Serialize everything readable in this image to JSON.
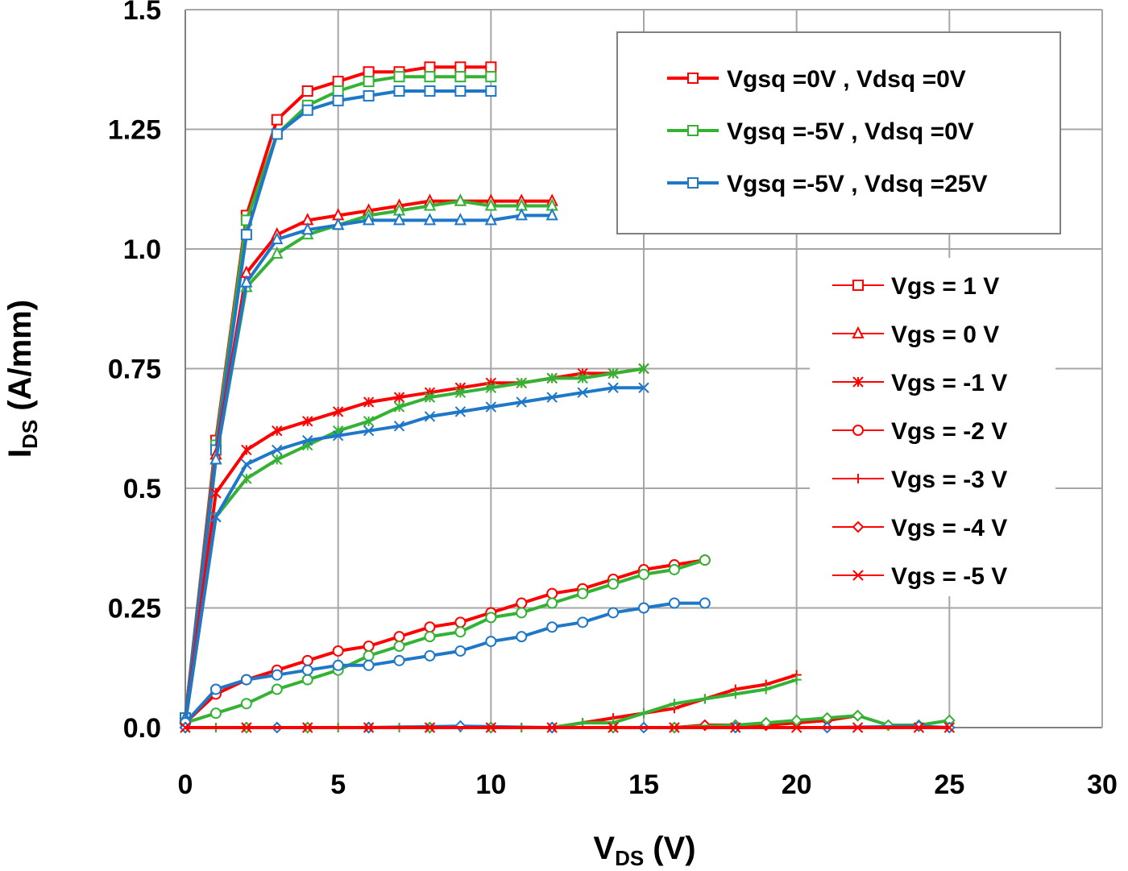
{
  "chart_data": {
    "type": "line",
    "title": "",
    "xlabel_main": "V",
    "xlabel_sub": "DS",
    "xlabel_unit": " (V)",
    "ylabel_main": "I",
    "ylabel_sub": "DS",
    "ylabel_unit": " (A/mm)",
    "xlim": [
      0,
      30
    ],
    "ylim": [
      0,
      1.5
    ],
    "xticks": [
      0,
      5,
      10,
      15,
      20,
      25,
      30
    ],
    "xtick_labels": [
      "0",
      "5",
      "10",
      "15",
      "20",
      "25",
      "30"
    ],
    "yticks": [
      0,
      0.25,
      0.5,
      0.75,
      1.0,
      1.25,
      1.5
    ],
    "ytick_labels": [
      "0.0",
      "0.25",
      "0.5",
      "0.75",
      "1.0",
      "1.25",
      "1.5"
    ],
    "grid": true,
    "colors": {
      "red": "#ff0000",
      "green": "#33b233",
      "blue": "#1f77c8",
      "cyan": "#00e0ff",
      "grid": "#a6a6a6"
    },
    "legend_conditions": [
      {
        "label": "Vgsq =0V , Vdsq =0V",
        "color": "red"
      },
      {
        "label": "Vgsq =-5V , Vdsq =0V",
        "color": "green"
      },
      {
        "label": "Vgsq =-5V , Vdsq =25V",
        "color": "blue"
      }
    ],
    "legend_markers": [
      {
        "label": "Vgs = 1 V",
        "marker": "square"
      },
      {
        "label": "Vgs = 0 V",
        "marker": "triangle"
      },
      {
        "label": "Vgs = -1 V",
        "marker": "star"
      },
      {
        "label": "Vgs = -2 V",
        "marker": "circle"
      },
      {
        "label": "Vgs = -3 V",
        "marker": "plus"
      },
      {
        "label": "Vgs = -4 V",
        "marker": "diamond"
      },
      {
        "label": "Vgs = -5 V",
        "marker": "x"
      }
    ],
    "series": [
      {
        "name": "Vgs = 1 V (0V,0V)",
        "color": "red",
        "marker": "square",
        "x": [
          0,
          1,
          2,
          3,
          4,
          5,
          6,
          7,
          8,
          9,
          10
        ],
        "y": [
          0.02,
          0.6,
          1.07,
          1.27,
          1.33,
          1.35,
          1.37,
          1.37,
          1.38,
          1.38,
          1.38
        ]
      },
      {
        "name": "Vgs = 1 V (-5V,0V)",
        "color": "green",
        "marker": "square",
        "x": [
          0,
          1,
          2,
          3,
          4,
          5,
          6,
          7,
          8,
          9,
          10
        ],
        "y": [
          0.02,
          0.59,
          1.06,
          1.24,
          1.3,
          1.33,
          1.35,
          1.36,
          1.36,
          1.36,
          1.36
        ]
      },
      {
        "name": "Vgs = 1 V (-5V,25V)",
        "color": "blue",
        "marker": "square",
        "x": [
          0,
          1,
          2,
          3,
          4,
          5,
          6,
          7,
          8,
          9,
          10
        ],
        "y": [
          0.02,
          0.58,
          1.03,
          1.24,
          1.29,
          1.31,
          1.32,
          1.33,
          1.33,
          1.33,
          1.33
        ]
      },
      {
        "name": "Vgs = 0 V (0V,0V)",
        "color": "red",
        "marker": "triangle",
        "x": [
          0,
          1,
          2,
          3,
          4,
          5,
          6,
          7,
          8,
          9,
          10,
          11,
          12
        ],
        "y": [
          0.02,
          0.57,
          0.95,
          1.03,
          1.06,
          1.07,
          1.08,
          1.09,
          1.1,
          1.1,
          1.1,
          1.1,
          1.1
        ]
      },
      {
        "name": "Vgs = 0 V (-5V,0V)",
        "color": "green",
        "marker": "triangle",
        "x": [
          0,
          1,
          2,
          3,
          4,
          5,
          6,
          7,
          8,
          9,
          10,
          11,
          12
        ],
        "y": [
          0.02,
          0.56,
          0.92,
          0.99,
          1.03,
          1.05,
          1.07,
          1.08,
          1.09,
          1.1,
          1.09,
          1.09,
          1.09
        ]
      },
      {
        "name": "Vgs = 0 V (-5V,25V)",
        "color": "blue",
        "marker": "triangle",
        "x": [
          0,
          1,
          2,
          3,
          4,
          5,
          6,
          7,
          8,
          9,
          10,
          11,
          12
        ],
        "y": [
          0.02,
          0.56,
          0.93,
          1.02,
          1.04,
          1.05,
          1.06,
          1.06,
          1.06,
          1.06,
          1.06,
          1.07,
          1.07
        ]
      },
      {
        "name": "Vgs = -1 V (0V,0V)",
        "color": "red",
        "marker": "star",
        "x": [
          0,
          1,
          2,
          3,
          4,
          5,
          6,
          7,
          8,
          9,
          10,
          11,
          12,
          13,
          14,
          15
        ],
        "y": [
          0.01,
          0.49,
          0.58,
          0.62,
          0.64,
          0.66,
          0.68,
          0.69,
          0.7,
          0.71,
          0.72,
          0.72,
          0.73,
          0.74,
          0.74,
          0.75
        ]
      },
      {
        "name": "Vgs = -1 V (-5V,0V)",
        "color": "green",
        "marker": "star",
        "x": [
          0,
          1,
          2,
          3,
          4,
          5,
          6,
          7,
          8,
          9,
          10,
          11,
          12,
          13,
          14,
          15
        ],
        "y": [
          0.01,
          0.44,
          0.52,
          0.56,
          0.59,
          0.62,
          0.64,
          0.67,
          0.69,
          0.7,
          0.71,
          0.72,
          0.73,
          0.73,
          0.74,
          0.75
        ]
      },
      {
        "name": "Vgs = -5 V (-5V,25V)",
        "color": "blue",
        "marker": "x",
        "x": [
          0,
          1,
          2,
          3,
          4,
          5,
          6,
          7,
          8,
          9,
          10,
          11,
          12,
          13,
          14,
          15
        ],
        "y": [
          0.01,
          0.44,
          0.55,
          0.58,
          0.6,
          0.61,
          0.62,
          0.63,
          0.65,
          0.66,
          0.67,
          0.68,
          0.69,
          0.7,
          0.71,
          0.71
        ]
      },
      {
        "name": "Vgs = -2 V (0V,0V)",
        "color": "red",
        "marker": "circle",
        "x": [
          0,
          1,
          2,
          3,
          4,
          5,
          6,
          7,
          8,
          9,
          10,
          11,
          12,
          13,
          14,
          15,
          16,
          17
        ],
        "y": [
          0.01,
          0.07,
          0.1,
          0.12,
          0.14,
          0.16,
          0.17,
          0.19,
          0.21,
          0.22,
          0.24,
          0.26,
          0.28,
          0.29,
          0.31,
          0.33,
          0.34,
          0.35
        ]
      },
      {
        "name": "Vgs = -2 V (-5V,0V)",
        "color": "green",
        "marker": "circle",
        "x": [
          0,
          1,
          2,
          3,
          4,
          5,
          6,
          7,
          8,
          9,
          10,
          11,
          12,
          13,
          14,
          15,
          16,
          17
        ],
        "y": [
          0.01,
          0.03,
          0.05,
          0.08,
          0.1,
          0.12,
          0.15,
          0.17,
          0.19,
          0.2,
          0.23,
          0.24,
          0.26,
          0.28,
          0.3,
          0.32,
          0.33,
          0.35
        ]
      },
      {
        "name": "Vgs = -2 V (-5V,25V)",
        "color": "blue",
        "marker": "circle",
        "x": [
          0,
          1,
          2,
          3,
          4,
          5,
          6,
          7,
          8,
          9,
          10,
          11,
          12,
          13,
          14,
          15,
          16,
          17
        ],
        "y": [
          0.01,
          0.08,
          0.1,
          0.11,
          0.12,
          0.13,
          0.13,
          0.14,
          0.15,
          0.16,
          0.18,
          0.19,
          0.21,
          0.22,
          0.24,
          0.25,
          0.26,
          0.26
        ]
      },
      {
        "name": "Vgs = -3 V (0V,0V)",
        "color": "red",
        "marker": "plus",
        "x": [
          0,
          1,
          2,
          3,
          4,
          5,
          6,
          7,
          8,
          9,
          10,
          11,
          12,
          13,
          14,
          15,
          16,
          17,
          18,
          19,
          20
        ],
        "y": [
          0,
          0,
          0,
          0,
          0,
          0,
          0,
          0,
          0,
          0,
          0,
          0,
          0,
          0.01,
          0.02,
          0.03,
          0.04,
          0.06,
          0.08,
          0.09,
          0.11
        ]
      },
      {
        "name": "Vgs = -3 V (-5V,0V)",
        "color": "green",
        "marker": "plus",
        "x": [
          0,
          1,
          2,
          3,
          4,
          5,
          6,
          7,
          8,
          9,
          10,
          11,
          12,
          13,
          14,
          15,
          16,
          17,
          18,
          19,
          20
        ],
        "y": [
          0,
          0,
          0,
          0,
          0,
          0,
          0,
          0,
          0,
          0,
          0,
          0,
          0,
          0.01,
          0.01,
          0.03,
          0.05,
          0.06,
          0.07,
          0.08,
          0.1
        ]
      },
      {
        "name": "Vgs = -4 V (0V,0V)",
        "color": "red",
        "marker": "diamond",
        "x": [
          0,
          2,
          4,
          6,
          8,
          10,
          12,
          14,
          16,
          17,
          18,
          19,
          20,
          21,
          22
        ],
        "y": [
          0,
          0,
          0,
          0,
          0,
          0,
          0,
          0,
          0,
          0.005,
          0.005,
          0.005,
          0.01,
          0.015,
          0.025
        ]
      },
      {
        "name": "Vgs = -4 V (-5V,0V)",
        "color": "green",
        "marker": "diamond",
        "x": [
          0,
          2,
          4,
          6,
          8,
          10,
          12,
          14,
          16,
          18,
          19,
          20,
          21,
          22,
          23,
          24,
          25
        ],
        "y": [
          0,
          0,
          0,
          0,
          0,
          0,
          0,
          0,
          0,
          0.005,
          0.01,
          0.015,
          0.02,
          0.025,
          0.005,
          0.005,
          0.015
        ]
      },
      {
        "name": "Vgs = -4 V (-5V,25V)",
        "color": "blue",
        "marker": "diamond",
        "x": [
          0,
          3,
          6,
          9,
          12,
          15,
          18,
          21,
          24,
          25
        ],
        "y": [
          0,
          0,
          0,
          0.003,
          0,
          0,
          0,
          0,
          0.003,
          0
        ]
      },
      {
        "name": "Vgs = -5 V (-5V,0V)",
        "color": "cyan",
        "marker": "none",
        "x": [
          0,
          5,
          10,
          15,
          20,
          25
        ],
        "y": [
          0,
          0,
          0,
          0,
          0,
          0
        ]
      },
      {
        "name": "Vgs = -5 V (0V,0V)",
        "color": "red",
        "marker": "x",
        "x": [
          0,
          2,
          4,
          6,
          8,
          10,
          12,
          14,
          16,
          18,
          20,
          22,
          24,
          25
        ],
        "y": [
          0,
          0,
          0,
          0,
          0,
          0,
          0,
          0,
          0,
          0,
          0,
          0,
          0,
          0
        ]
      }
    ]
  }
}
